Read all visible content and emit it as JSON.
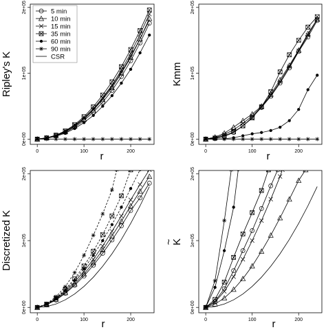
{
  "chart_data": [
    {
      "type": "line",
      "id": "ripley",
      "ylabel": "Ripley's K",
      "xlabel": "r",
      "xlim": [
        -15,
        250
      ],
      "ylim": [
        -8000,
        205000
      ],
      "xticks": [
        0,
        100,
        200
      ],
      "yticks": [
        0,
        100000,
        200000
      ],
      "ytick_labels": [
        "0e+00",
        "1e+05",
        "2e+05"
      ],
      "legend": {
        "placement": "top-left"
      },
      "series": [
        {
          "name": "5 min",
          "marker": "circle",
          "x": [
            0,
            20,
            40,
            60,
            80,
            100,
            120,
            140,
            160,
            180,
            200,
            220,
            240
          ],
          "y": [
            0,
            1500,
            5000,
            10000,
            18000,
            28000,
            41000,
            56000,
            74000,
            95000,
            119000,
            146000,
            176000
          ]
        },
        {
          "name": "10 min",
          "marker": "triangle",
          "x": [
            0,
            20,
            40,
            60,
            80,
            100,
            120,
            140,
            160,
            180,
            200,
            220,
            240
          ],
          "y": [
            0,
            1700,
            5500,
            11000,
            19500,
            30000,
            44000,
            60000,
            78000,
            100000,
            124000,
            152000,
            183000
          ]
        },
        {
          "name": "15 min",
          "marker": "x",
          "x": [
            0,
            20,
            40,
            60,
            80,
            100,
            120,
            140,
            160,
            180,
            200,
            220,
            240
          ],
          "y": [
            0,
            1800,
            5800,
            11800,
            20500,
            32000,
            46000,
            63000,
            82000,
            105000,
            130000,
            159000,
            190000
          ]
        },
        {
          "name": "35 min",
          "marker": "boxed-x",
          "x": [
            0,
            20,
            40,
            60,
            80,
            100,
            120,
            140,
            160,
            180,
            200,
            220,
            240
          ],
          "y": [
            0,
            1900,
            6000,
            12500,
            22000,
            34000,
            49000,
            67000,
            87000,
            110000,
            136000,
            165000,
            196000
          ]
        },
        {
          "name": "60 min",
          "marker": "dot",
          "x": [
            0,
            20,
            40,
            60,
            80,
            100,
            120,
            140,
            160,
            180,
            200,
            220,
            240
          ],
          "y": [
            0,
            1300,
            4300,
            9000,
            16000,
            25000,
            36000,
            50000,
            66000,
            85000,
            106000,
            131000,
            158000
          ]
        },
        {
          "name": "90 min",
          "marker": "asterisk",
          "x": [
            0,
            20,
            40,
            60,
            80,
            100,
            120,
            140,
            160,
            180,
            200,
            220,
            240
          ],
          "y": [
            0,
            0,
            0,
            0,
            0,
            0,
            0,
            0,
            0,
            0,
            0,
            0,
            0
          ]
        },
        {
          "name": "CSR",
          "marker": "none",
          "x": [
            0,
            20,
            40,
            60,
            80,
            100,
            120,
            140,
            160,
            180,
            200,
            220,
            240
          ],
          "y": [
            0,
            1257,
            5027,
            11310,
            20106,
            31416,
            45239,
            61575,
            80425,
            101788,
            125664,
            152053,
            180956
          ]
        }
      ]
    },
    {
      "type": "line",
      "id": "kmm",
      "ylabel": "Kmm",
      "xlabel": "r",
      "xlim": [
        -15,
        250
      ],
      "ylim": [
        -8000,
        205000
      ],
      "xticks": [
        0,
        100,
        200
      ],
      "yticks": [
        0,
        100000,
        200000
      ],
      "ytick_labels": [
        "0e+00",
        "1e+05",
        "2e+05"
      ],
      "series": [
        {
          "name": "5 min",
          "marker": "circle",
          "x": [
            0,
            20,
            40,
            60,
            80,
            100,
            120,
            140,
            160,
            180,
            200,
            220,
            240
          ],
          "y": [
            0,
            1000,
            4000,
            10000,
            20000,
            33000,
            48000,
            65000,
            85000,
            108000,
            133000,
            155000,
            180000
          ]
        },
        {
          "name": "10 min",
          "marker": "triangle",
          "x": [
            0,
            20,
            40,
            60,
            80,
            100,
            120,
            140,
            160,
            180,
            200,
            220,
            240
          ],
          "y": [
            0,
            3000,
            9000,
            18000,
            28000,
            38000,
            50000,
            68000,
            90000,
            112000,
            135000,
            160000,
            182000
          ]
        },
        {
          "name": "15 min",
          "marker": "x",
          "x": [
            0,
            20,
            40,
            60,
            80,
            100,
            120,
            140,
            160,
            180,
            200,
            220,
            240
          ],
          "y": [
            0,
            2000,
            7000,
            14000,
            24000,
            35000,
            49000,
            66000,
            87000,
            110000,
            134000,
            158000,
            182000
          ]
        },
        {
          "name": "35 min",
          "marker": "boxed-x",
          "x": [
            0,
            20,
            40,
            60,
            80,
            100,
            120,
            140,
            160,
            180,
            200,
            220,
            240
          ],
          "y": [
            0,
            1500,
            5000,
            11000,
            20000,
            32000,
            49000,
            72000,
            102000,
            128000,
            150000,
            170000,
            186000
          ]
        },
        {
          "name": "60 min",
          "marker": "dot",
          "x": [
            0,
            20,
            40,
            60,
            80,
            100,
            120,
            140,
            160,
            180,
            200,
            220,
            240
          ],
          "y": [
            0,
            0,
            500,
            2000,
            5000,
            8000,
            10000,
            13000,
            18000,
            28000,
            45000,
            75000,
            97000
          ]
        },
        {
          "name": "90 min",
          "marker": "asterisk",
          "x": [
            0,
            20,
            40,
            60,
            80,
            100,
            120,
            140,
            160,
            180,
            200,
            220,
            240
          ],
          "y": [
            0,
            0,
            0,
            0,
            0,
            0,
            0,
            0,
            0,
            0,
            0,
            0,
            0
          ]
        }
      ]
    },
    {
      "type": "line",
      "id": "discretized",
      "ylabel": "Discretized  K",
      "xlabel": "r",
      "xlim": [
        -15,
        250
      ],
      "ylim": [
        -8000,
        205000
      ],
      "xticks": [
        0,
        100,
        200
      ],
      "yticks": [
        0,
        100000,
        200000
      ],
      "ytick_labels": [
        "0e+00",
        "1e+05",
        "2e+05"
      ],
      "series": [
        {
          "name": "5 min",
          "marker": "circle",
          "dashed": false,
          "x": [
            0,
            20,
            40,
            60,
            80,
            100,
            120,
            140,
            160,
            180,
            200,
            220,
            240
          ],
          "y": [
            0,
            4000,
            11000,
            21000,
            33000,
            47000,
            63000,
            81000,
            101000,
            122000,
            145000,
            164000,
            186000
          ]
        },
        {
          "name": "10 min",
          "marker": "triangle",
          "dashed": false,
          "x": [
            0,
            20,
            40,
            60,
            80,
            100,
            120,
            140,
            160,
            180,
            200,
            220,
            240
          ],
          "y": [
            0,
            4000,
            12000,
            22000,
            35000,
            50000,
            67000,
            86000,
            107000,
            129000,
            152000,
            174000,
            196000
          ]
        },
        {
          "name": "15 min",
          "marker": "x",
          "dashed": false,
          "x": [
            0,
            20,
            40,
            60,
            80,
            100,
            120,
            140,
            160,
            180,
            200,
            220,
            240
          ],
          "y": [
            0,
            4500,
            13000,
            24000,
            38000,
            54000,
            72000,
            92000,
            114000,
            137000,
            161000,
            184000,
            206000
          ]
        },
        {
          "name": "35 min",
          "marker": "boxed-x",
          "dashed": true,
          "x": [
            0,
            20,
            40,
            60,
            80,
            100,
            120,
            140,
            160,
            180,
            200
          ],
          "y": [
            0,
            5000,
            14000,
            27000,
            43000,
            62000,
            84000,
            109000,
            137000,
            167000,
            206000
          ]
        },
        {
          "name": "60 min",
          "marker": "dot",
          "dashed": true,
          "x": [
            0,
            20,
            40,
            60,
            80,
            100,
            120,
            140,
            160,
            180,
            200,
            220
          ],
          "y": [
            0,
            4700,
            13500,
            25500,
            40500,
            58000,
            78000,
            100000,
            124000,
            150000,
            178000,
            206000
          ]
        },
        {
          "name": "90 min",
          "marker": "asterisk",
          "dashed": true,
          "x": [
            0,
            20,
            40,
            60,
            80,
            100,
            120,
            140,
            160,
            170
          ],
          "y": [
            0,
            5500,
            16000,
            31000,
            52000,
            78000,
            108000,
            140000,
            176000,
            206000
          ]
        },
        {
          "name": "CSR",
          "marker": "none",
          "dashed": false,
          "x": [
            0,
            20,
            40,
            60,
            80,
            100,
            120,
            140,
            160,
            180,
            200,
            220,
            240
          ],
          "y": [
            0,
            1257,
            5027,
            11310,
            20106,
            31416,
            45239,
            61575,
            80425,
            101788,
            125664,
            152053,
            180956
          ]
        }
      ]
    },
    {
      "type": "line",
      "id": "ktilde",
      "ylabel": "K",
      "ylabel_accent": "~",
      "xlabel": "r",
      "xlim": [
        -15,
        250
      ],
      "ylim": [
        -8000,
        205000
      ],
      "xticks": [
        0,
        100,
        200
      ],
      "yticks": [
        0,
        100000,
        200000
      ],
      "ytick_labels": [
        "0e+00",
        "1e+05",
        "2e+05"
      ],
      "series": [
        {
          "name": "5 min",
          "marker": "circle",
          "x": [
            0,
            20,
            40,
            60,
            80,
            100,
            120,
            140,
            155
          ],
          "y": [
            0,
            9000,
            28000,
            55000,
            85000,
            115000,
            148000,
            182000,
            206000
          ]
        },
        {
          "name": "10 min",
          "marker": "triangle",
          "x": [
            0,
            20,
            40,
            60,
            80,
            100,
            120,
            140,
            160,
            180,
            200,
            215
          ],
          "y": [
            0,
            5000,
            14000,
            27000,
            43000,
            62000,
            84000,
            108000,
            134000,
            162000,
            190000,
            206000
          ]
        },
        {
          "name": "15 min",
          "marker": "x",
          "x": [
            0,
            20,
            40,
            60,
            80,
            100,
            120,
            140,
            160,
            165
          ],
          "y": [
            0,
            8000,
            24000,
            46000,
            72000,
            100000,
            130000,
            162000,
            196000,
            206000
          ]
        },
        {
          "name": "35 min",
          "marker": "boxed-x",
          "x": [
            0,
            20,
            40,
            60,
            80,
            100,
            120,
            135
          ],
          "y": [
            0,
            12000,
            38000,
            75000,
            110000,
            142000,
            175000,
            206000
          ]
        },
        {
          "name": "60 min",
          "marker": "dot",
          "x": [
            0,
            20,
            40,
            60,
            70
          ],
          "y": [
            0,
            30000,
            85000,
            150000,
            206000
          ]
        },
        {
          "name": "90 min",
          "marker": "asterisk",
          "x": [
            0,
            20,
            40,
            55
          ],
          "y": [
            0,
            40000,
            130000,
            206000
          ]
        },
        {
          "name": "CSR",
          "marker": "none",
          "x": [
            0,
            20,
            40,
            60,
            80,
            100,
            120,
            140,
            160,
            180,
            200,
            220,
            240
          ],
          "y": [
            0,
            1257,
            5027,
            11310,
            20106,
            31416,
            45239,
            61575,
            80425,
            101788,
            125664,
            152053,
            180956
          ]
        }
      ]
    }
  ]
}
